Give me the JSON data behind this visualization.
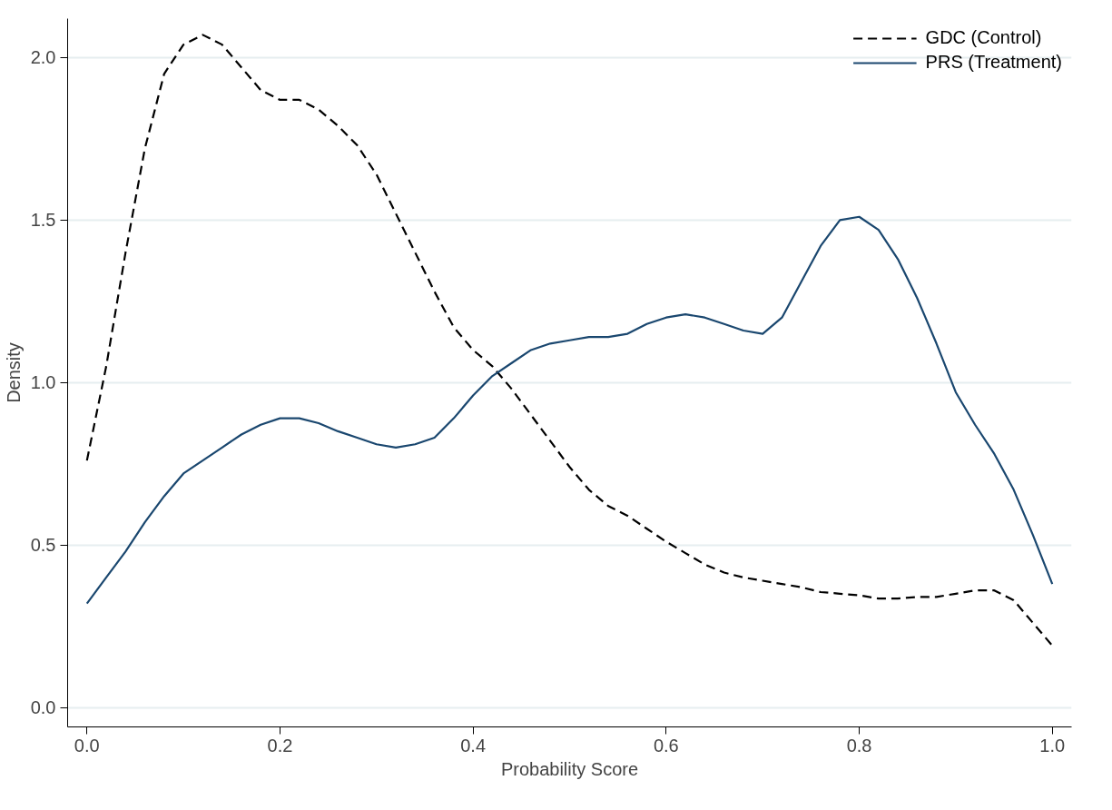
{
  "chart_data": {
    "type": "line",
    "xlabel": "Probability Score",
    "ylabel": "Density",
    "x": [
      0,
      0.02,
      0.04,
      0.06,
      0.08,
      0.1,
      0.12,
      0.14,
      0.16,
      0.18,
      0.2,
      0.22,
      0.24,
      0.26,
      0.28,
      0.3,
      0.32,
      0.34,
      0.36,
      0.38,
      0.4,
      0.42,
      0.44,
      0.46,
      0.48,
      0.5,
      0.52,
      0.54,
      0.56,
      0.58,
      0.6,
      0.62,
      0.64,
      0.66,
      0.68,
      0.7,
      0.72,
      0.74,
      0.76,
      0.78,
      0.8,
      0.82,
      0.84,
      0.86,
      0.88,
      0.9,
      0.92,
      0.94,
      0.96,
      0.98,
      1.0
    ],
    "series": [
      {
        "name": "GDC (Control)",
        "color": "#000000",
        "line_style": "dashed",
        "values": [
          0.76,
          1.05,
          1.4,
          1.72,
          1.95,
          2.04,
          2.07,
          2.04,
          1.97,
          1.9,
          1.87,
          1.87,
          1.84,
          1.79,
          1.73,
          1.64,
          1.52,
          1.4,
          1.28,
          1.17,
          1.1,
          1.05,
          0.98,
          0.9,
          0.82,
          0.74,
          0.67,
          0.62,
          0.59,
          0.55,
          0.51,
          0.475,
          0.44,
          0.415,
          0.4,
          0.39,
          0.38,
          0.37,
          0.355,
          0.35,
          0.345,
          0.335,
          0.335,
          0.34,
          0.34,
          0.35,
          0.36,
          0.36,
          0.33,
          0.26,
          0.19
        ]
      },
      {
        "name": "PRS (Treatment)",
        "color": "#1a476f",
        "line_style": "solid",
        "values": [
          0.32,
          0.4,
          0.48,
          0.57,
          0.65,
          0.72,
          0.76,
          0.8,
          0.84,
          0.87,
          0.89,
          0.89,
          0.875,
          0.85,
          0.83,
          0.81,
          0.8,
          0.81,
          0.83,
          0.89,
          0.96,
          1.02,
          1.06,
          1.1,
          1.12,
          1.13,
          1.14,
          1.14,
          1.15,
          1.18,
          1.2,
          1.21,
          1.2,
          1.18,
          1.16,
          1.15,
          1.2,
          1.31,
          1.42,
          1.5,
          1.51,
          1.47,
          1.38,
          1.26,
          1.12,
          0.97,
          0.87,
          0.78,
          0.67,
          0.53,
          0.38
        ]
      }
    ],
    "xlim": [
      -0.02,
      1.02
    ],
    "ylim": [
      -0.06,
      2.12
    ],
    "xticks": [
      {
        "value": 0,
        "label": "0.0"
      },
      0.2,
      0.4,
      0.6,
      0.8,
      {
        "value": 1,
        "label": "1.0"
      }
    ],
    "yticks": [
      {
        "value": 0,
        "label": "0.0"
      },
      0.5,
      {
        "value": 1,
        "label": "1.0"
      },
      1.5,
      {
        "value": 2,
        "label": "2.0"
      }
    ],
    "grid": "y",
    "legend": "top right",
    "marker": "none"
  }
}
